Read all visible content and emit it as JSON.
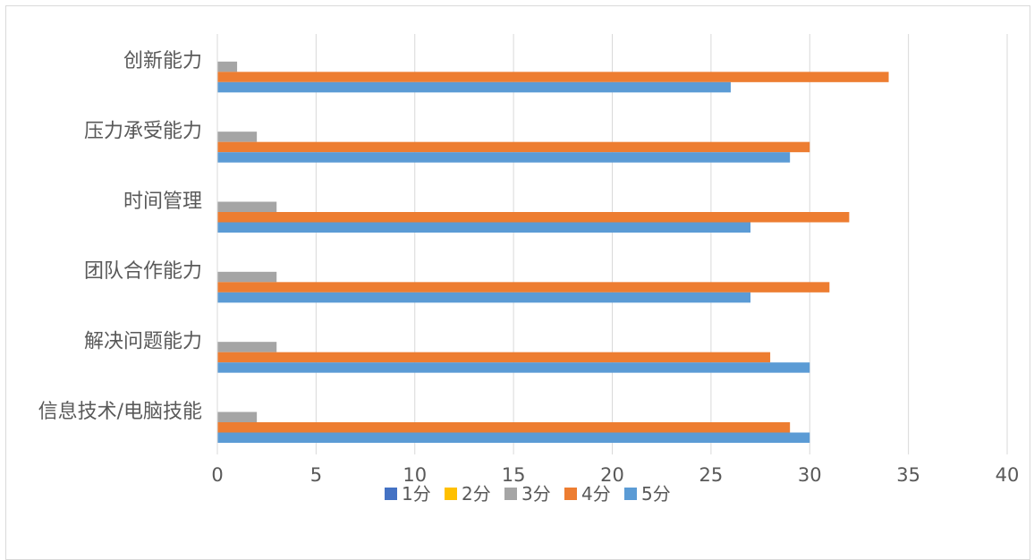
{
  "chart_data": {
    "type": "bar",
    "orientation": "horizontal",
    "categories": [
      "创新能力",
      "压力承受能力",
      "时间管理",
      "团队合作能力",
      "解决问题能力",
      "信息技术/电脑技能"
    ],
    "series": [
      {
        "name": "1分",
        "color": "#4472C4",
        "values": [
          0,
          0,
          0,
          0,
          0,
          0
        ]
      },
      {
        "name": "2分",
        "color": "#FFC000",
        "values": [
          0,
          0,
          0,
          0,
          0,
          0
        ]
      },
      {
        "name": "3分",
        "color": "#A5A5A5",
        "values": [
          1,
          2,
          3,
          3,
          3,
          2
        ]
      },
      {
        "name": "4分",
        "color": "#ED7D31",
        "values": [
          34,
          30,
          32,
          31,
          28,
          29
        ]
      },
      {
        "name": "5分",
        "color": "#5B9BD5",
        "values": [
          26,
          29,
          27,
          27,
          30,
          30
        ]
      }
    ],
    "xlim": [
      0,
      40
    ],
    "xticks": [
      0,
      5,
      10,
      15,
      20,
      25,
      30,
      35,
      40
    ],
    "grid": "vertical",
    "legend": "bottom",
    "title": "",
    "xlabel": "",
    "ylabel": ""
  }
}
